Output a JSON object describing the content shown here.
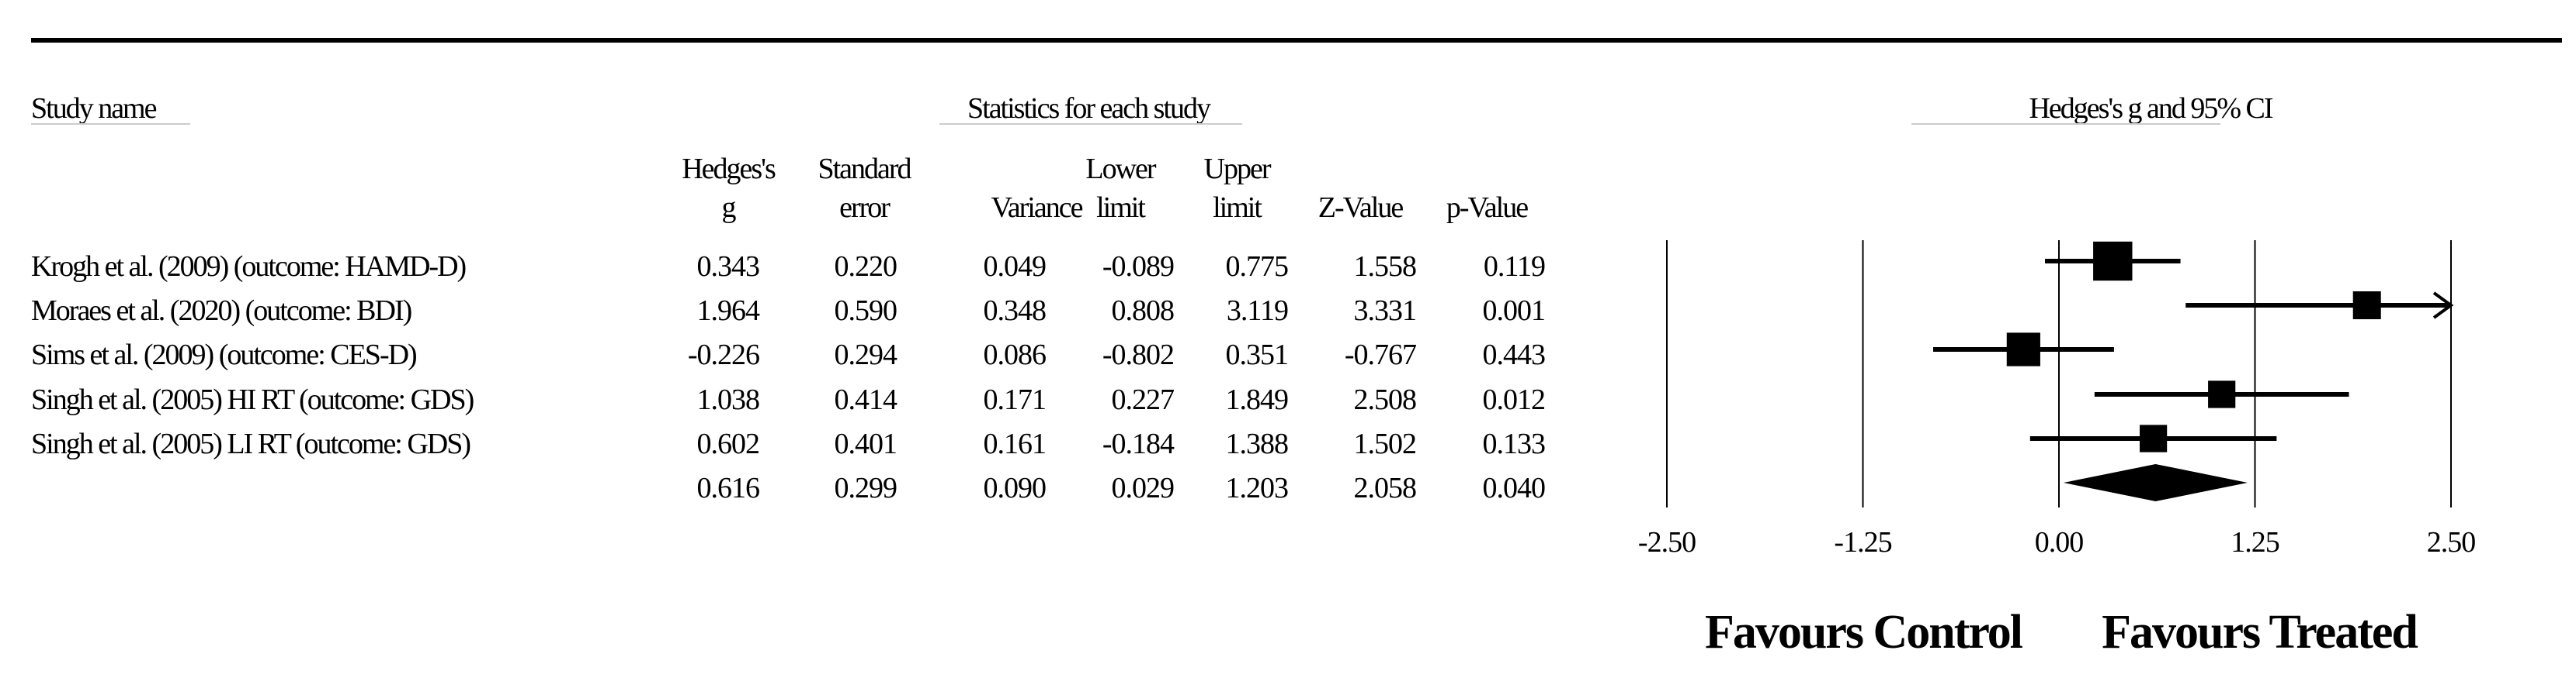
{
  "table": {
    "study_name_header": "Study name",
    "stats_group_header": "Statistics for each study",
    "columns": [
      {
        "key": "g",
        "line1": "Hedges's",
        "line2": "g"
      },
      {
        "key": "se",
        "line1": "Standard",
        "line2": "error"
      },
      {
        "key": "var",
        "line1": "",
        "line2": "Variance"
      },
      {
        "key": "lower",
        "line1": "Lower",
        "line2": "limit"
      },
      {
        "key": "upper",
        "line1": "Upper",
        "line2": "limit"
      },
      {
        "key": "z",
        "line1": "",
        "line2": "Z-Value"
      },
      {
        "key": "p",
        "line1": "",
        "line2": "p-Value"
      }
    ],
    "rows": [
      {
        "study": "Krogh et al. (2009) (outcome: HAMD-D)",
        "g": "0.343",
        "se": "0.220",
        "var": "0.049",
        "lower": "-0.089",
        "upper": "0.775",
        "z": "1.558",
        "p": "0.119"
      },
      {
        "study": "Moraes et al. (2020) (outcome: BDI)",
        "g": "1.964",
        "se": "0.590",
        "var": "0.348",
        "lower": "0.808",
        "upper": "3.119",
        "z": "3.331",
        "p": "0.001"
      },
      {
        "study": "Sims et al. (2009) (outcome: CES-D)",
        "g": "-0.226",
        "se": "0.294",
        "var": "0.086",
        "lower": "-0.802",
        "upper": "0.351",
        "z": "-0.767",
        "p": "0.443"
      },
      {
        "study": "Singh et al. (2005) HI RT (outcome: GDS)",
        "g": "1.038",
        "se": "0.414",
        "var": "0.171",
        "lower": "0.227",
        "upper": "1.849",
        "z": "2.508",
        "p": "0.012"
      },
      {
        "study": "Singh et al. (2005) LI RT (outcome: GDS)",
        "g": "0.602",
        "se": "0.401",
        "var": "0.161",
        "lower": "-0.184",
        "upper": "1.388",
        "z": "1.502",
        "p": "0.133"
      },
      {
        "study": "",
        "g": "0.616",
        "se": "0.299",
        "var": "0.090",
        "lower": "0.029",
        "upper": "1.203",
        "z": "2.058",
        "p": "0.040"
      }
    ]
  },
  "chart_data": {
    "type": "forest",
    "title": "Hedges's g and 95% CI",
    "xlim": [
      -2.5,
      2.5
    ],
    "x_ticks": [
      -2.5,
      -1.25,
      0,
      1.25,
      2.5
    ],
    "x_tick_labels": [
      "-2.50",
      "-1.25",
      "0.00",
      "1.25",
      "2.50"
    ],
    "gridlines": true,
    "favours_left": "Favours Control",
    "favours_right": "Favours Treated",
    "studies": [
      {
        "g": 0.343,
        "lower": -0.089,
        "upper": 0.775,
        "weight": 0.33
      },
      {
        "g": 1.964,
        "lower": 0.808,
        "upper": 3.119,
        "weight": 0.15
      },
      {
        "g": -0.226,
        "lower": -0.802,
        "upper": 0.351,
        "weight": 0.24
      },
      {
        "g": 1.038,
        "lower": 0.227,
        "upper": 1.849,
        "weight": 0.14
      },
      {
        "g": 0.602,
        "lower": -0.184,
        "upper": 1.388,
        "weight": 0.14
      }
    ],
    "summary": {
      "g": 0.616,
      "lower": 0.029,
      "upper": 1.203
    }
  }
}
